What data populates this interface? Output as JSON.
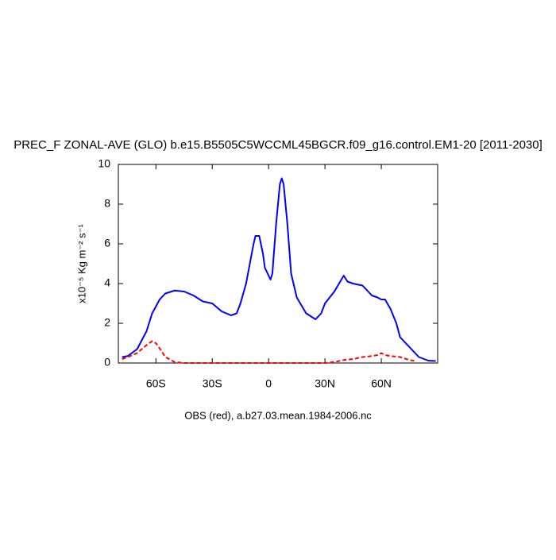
{
  "chart_data": {
    "type": "line",
    "title": "PREC_F ZONAL-AVE (GLO) b.e15.B5505C5WCCML45BGCR.f09_g16.control.EM1-20 [2011-2030]",
    "xlabel": "OBS (red), a.b27.03.mean.1984-2006.nc",
    "ylabel": "x10⁻⁵ Kg m⁻² s⁻¹",
    "xlim": [
      -80,
      90
    ],
    "ylim": [
      0,
      10
    ],
    "xticks": [
      {
        "value": -60,
        "label": "60S"
      },
      {
        "value": -30,
        "label": "30S"
      },
      0,
      {
        "value": 30,
        "label": "30N"
      },
      {
        "value": 60,
        "label": "60N"
      }
    ],
    "yticks": [
      0,
      2,
      4,
      6,
      8,
      10
    ],
    "grid": false,
    "series": [
      {
        "color": "#0000ff",
        "dash": false,
        "x": [
          -78,
          -75,
          -70,
          -65,
          -62,
          -58,
          -55,
          -50,
          -45,
          -40,
          -35,
          -30,
          -25,
          -20,
          -17,
          -15,
          -12,
          -10,
          -8,
          -7,
          -5,
          -3,
          -2,
          0,
          1,
          2,
          4,
          6,
          7,
          8,
          10,
          12,
          15,
          20,
          25,
          28,
          30,
          35,
          40,
          42,
          45,
          50,
          55,
          58,
          60,
          62,
          65,
          68,
          70,
          75,
          80,
          85,
          89
        ],
        "values": [
          0.3,
          0.35,
          0.7,
          1.6,
          2.5,
          3.2,
          3.5,
          3.65,
          3.6,
          3.4,
          3.1,
          3.0,
          2.6,
          2.4,
          2.5,
          3.0,
          4.0,
          5.0,
          6.0,
          6.4,
          6.4,
          5.5,
          4.8,
          4.4,
          4.2,
          4.5,
          7.0,
          9.0,
          9.3,
          9.0,
          7.0,
          4.5,
          3.3,
          2.5,
          2.2,
          2.5,
          3.0,
          3.6,
          4.4,
          4.1,
          4.0,
          3.9,
          3.4,
          3.3,
          3.2,
          3.2,
          2.7,
          2.0,
          1.3,
          0.8,
          0.3,
          0.12,
          0.1
        ]
      },
      {
        "color": "#ff0000",
        "dash": true,
        "x": [
          -78,
          -75,
          -70,
          -65,
          -62,
          -60,
          -57,
          -55,
          -50,
          -45,
          -30,
          0,
          30,
          35,
          40,
          45,
          50,
          55,
          58,
          60,
          62,
          65,
          70,
          75,
          78
        ],
        "values": [
          0.2,
          0.3,
          0.5,
          0.9,
          1.1,
          1.0,
          0.6,
          0.3,
          0.05,
          0,
          0,
          0,
          0,
          0.05,
          0.15,
          0.2,
          0.3,
          0.35,
          0.4,
          0.5,
          0.4,
          0.35,
          0.3,
          0.15,
          0.1
        ]
      }
    ]
  }
}
